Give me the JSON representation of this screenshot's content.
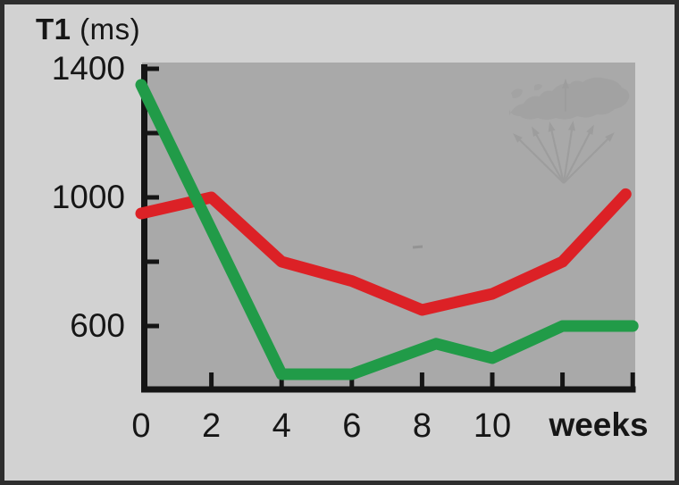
{
  "title": {
    "bold": "T1",
    "rest": " (ms)"
  },
  "colors": {
    "background": "#d2d2d2",
    "frame_border": "#2e2e2e",
    "plot_background": "#a9a9a9",
    "axis": "#151515",
    "text": "#161616",
    "red_series": "#dc2126",
    "green_series": "#219b48",
    "watermark": "#8d8d8d"
  },
  "icons": {
    "watermark": "globe-map-with-fan-of-arrows-watermark"
  },
  "chart_data": {
    "type": "line",
    "title": "T1 (ms)",
    "xlabel": "weeks",
    "ylabel": "T1 (ms)",
    "grid": false,
    "legend": false,
    "x_axis": {
      "min": 0,
      "max": 14,
      "unit": "weeks",
      "labeled_ticks": [
        0,
        2,
        4,
        6,
        8,
        10
      ],
      "unlabeled_ticks": [
        12,
        14
      ]
    },
    "y_axis": {
      "min": 420,
      "max": 1450,
      "unit": "ms",
      "labeled_ticks": [
        1400,
        1000,
        600
      ],
      "minor_ticks": [
        1200,
        800
      ]
    },
    "series": [
      {
        "name": "red",
        "color": "#dc2126",
        "x": [
          0,
          2,
          4,
          6,
          8,
          10,
          12,
          13.8
        ],
        "values": [
          950,
          1000,
          800,
          740,
          650,
          700,
          800,
          1010
        ]
      },
      {
        "name": "green",
        "color": "#219b48",
        "x": [
          0,
          2,
          4,
          6,
          8.4,
          10,
          12,
          14
        ],
        "values": [
          1350,
          900,
          450,
          450,
          545,
          500,
          600,
          600
        ]
      }
    ]
  }
}
